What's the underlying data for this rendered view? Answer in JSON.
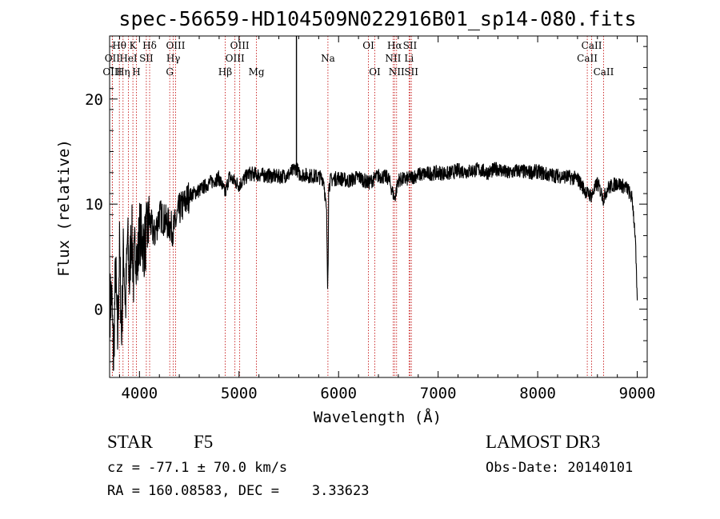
{
  "chart_data": {
    "type": "line",
    "title": "spec-56659-HD104509N022916B01_sp14-080.fits",
    "xlabel": "Wavelength (Å)",
    "ylabel": "Flux (relative)",
    "xlim": [
      3700,
      9100
    ],
    "ylim": [
      -6.5,
      26
    ],
    "x_ticks": [
      4000,
      5000,
      6000,
      7000,
      8000,
      9000
    ],
    "x_tick_labels": [
      "4000",
      "5000",
      "6000",
      "7000",
      "8000",
      "9000"
    ],
    "y_ticks": [
      0,
      10,
      20
    ],
    "y_tick_labels": [
      "0",
      "10",
      "20"
    ],
    "series": [
      {
        "name": "flux",
        "x": [
          3705,
          3720,
          3740,
          3760,
          3780,
          3800,
          3820,
          3840,
          3860,
          3880,
          3900,
          3920,
          3940,
          3960,
          3980,
          4000,
          4050,
          4100,
          4150,
          4200,
          4250,
          4300,
          4340,
          4400,
          4450,
          4500,
          4600,
          4700,
          4800,
          4861,
          4900,
          5000,
          5100,
          5200,
          5300,
          5400,
          5500,
          5577,
          5600,
          5700,
          5800,
          5850,
          5880,
          5890,
          5896,
          5900,
          5920,
          6000,
          6100,
          6200,
          6300,
          6400,
          6500,
          6563,
          6600,
          6700,
          6800,
          6900,
          7000,
          7100,
          7200,
          7300,
          7400,
          7500,
          7600,
          7700,
          7800,
          7900,
          8000,
          8100,
          8200,
          8300,
          8400,
          8498,
          8542,
          8600,
          8662,
          8700,
          8800,
          8900,
          8950,
          8980,
          9000
        ],
        "y": [
          0.5,
          1.5,
          -5.0,
          4.0,
          -3.0,
          5.5,
          -2.5,
          6.0,
          0.0,
          7.0,
          2.5,
          8.0,
          3.0,
          6.5,
          4.0,
          7.5,
          6.0,
          8.5,
          7.0,
          9.0,
          8.5,
          8.0,
          7.5,
          9.5,
          10.0,
          10.8,
          11.3,
          12.0,
          12.5,
          11.0,
          12.6,
          11.8,
          12.9,
          12.8,
          12.7,
          12.6,
          12.8,
          13.5,
          12.9,
          12.7,
          12.6,
          12.4,
          9.0,
          2.0,
          5.0,
          11.5,
          12.3,
          12.5,
          12.2,
          12.6,
          12.0,
          12.7,
          12.5,
          10.5,
          12.3,
          12.4,
          12.8,
          12.9,
          13.0,
          12.9,
          13.2,
          13.1,
          13.3,
          13.0,
          13.4,
          12.9,
          13.2,
          13.0,
          13.1,
          12.8,
          12.7,
          12.6,
          12.4,
          11.0,
          10.8,
          12.0,
          10.5,
          11.5,
          12.0,
          11.5,
          10.5,
          7.0,
          0.5
        ],
        "spike": {
          "x": 5577,
          "y": 30
        }
      }
    ],
    "line_annotations": [
      {
        "label": "Hθ",
        "wavelength": 3798,
        "row": 1
      },
      {
        "label": "OII",
        "wavelength": 3727,
        "row": 2
      },
      {
        "label": "OIII",
        "wavelength": 3727,
        "row": 3
      },
      {
        "label": "K",
        "wavelength": 3934,
        "row": 1
      },
      {
        "label": "HeI",
        "wavelength": 3889,
        "row": 2
      },
      {
        "label": "Hη",
        "wavelength": 3835,
        "row": 3
      },
      {
        "label": "SII",
        "wavelength": 4069,
        "row": 2
      },
      {
        "label": "H",
        "wavelength": 3969,
        "row": 3
      },
      {
        "label": "Hδ",
        "wavelength": 4102,
        "row": 1
      },
      {
        "label": "OIII",
        "wavelength": 4363,
        "row": 1
      },
      {
        "label": "Hγ",
        "wavelength": 4340,
        "row": 2
      },
      {
        "label": "G",
        "wavelength": 4304,
        "row": 3
      },
      {
        "label": "OIII",
        "wavelength": 5007,
        "row": 1
      },
      {
        "label": "OIII",
        "wavelength": 4959,
        "row": 2
      },
      {
        "label": "Hβ",
        "wavelength": 4861,
        "row": 3
      },
      {
        "label": "Mg",
        "wavelength": 5175,
        "row": 3
      },
      {
        "label": "Na",
        "wavelength": 5893,
        "row": 2
      },
      {
        "label": "OI",
        "wavelength": 6300,
        "row": 1
      },
      {
        "label": "OI",
        "wavelength": 6364,
        "row": 3
      },
      {
        "label": "Hα",
        "wavelength": 6563,
        "row": 1
      },
      {
        "label": "SII",
        "wavelength": 6717,
        "row": 1
      },
      {
        "label": "NII",
        "wavelength": 6548,
        "row": 2
      },
      {
        "label": "Li",
        "wavelength": 6708,
        "row": 2
      },
      {
        "label": "NII",
        "wavelength": 6583,
        "row": 3
      },
      {
        "label": "SII",
        "wavelength": 6731,
        "row": 3
      },
      {
        "label": "CaII",
        "wavelength": 8542,
        "row": 1
      },
      {
        "label": "CaII",
        "wavelength": 8498,
        "row": 2
      },
      {
        "label": "CaII",
        "wavelength": 8662,
        "row": 3
      }
    ]
  },
  "info": {
    "object_class": "STAR",
    "subclass": "F5",
    "survey": "LAMOST DR3",
    "redshift": "cz = -77.1 ± 70.0 km/s",
    "obs_date": "Obs-Date: 20140101",
    "coords": "RA = 160.08583, DEC =    3.33623"
  },
  "colors": {
    "line_marker": "#c00000",
    "spectrum": "#000000",
    "axes": "#000000"
  }
}
